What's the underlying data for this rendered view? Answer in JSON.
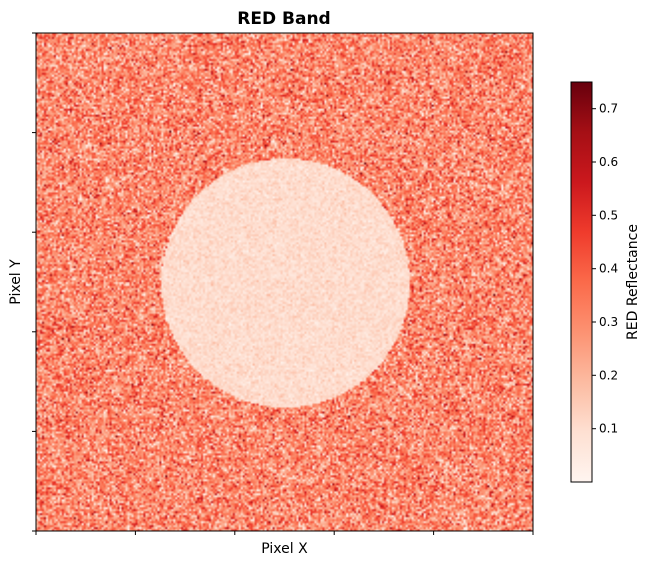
{
  "chart_data": {
    "type": "heatmap",
    "title": "RED Band",
    "xlabel": "Pixel X",
    "ylabel": "Pixel Y",
    "colormap": "Reds",
    "colorbar": {
      "label": "RED Reflectance",
      "min": 0.0,
      "max": 0.75,
      "ticks": [
        0.1,
        0.2,
        0.3,
        0.4,
        0.5,
        0.6,
        0.7
      ],
      "tick_labels": [
        "0.1",
        "0.2",
        "0.3",
        "0.4",
        "0.5",
        "0.6",
        "0.7"
      ]
    },
    "x_tick_count": 6,
    "y_tick_count": 6,
    "x_tick_labels_shown": false,
    "y_tick_labels_shown": false,
    "background": {
      "description": "noisy reflectance field",
      "mean_reflectance": 0.3,
      "spread": 0.12
    },
    "circle_region": {
      "description": "low reflectance disk",
      "mean_reflectance": 0.1,
      "spread": 0.03
    }
  }
}
